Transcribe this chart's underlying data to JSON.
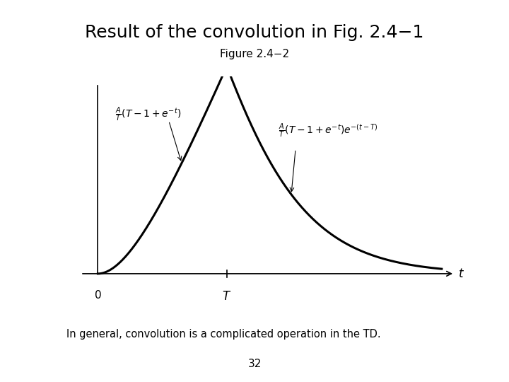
{
  "title": "Result of the convolution in Fig. 2.4−1",
  "subtitle": "Figure 2.4−2",
  "bottom_text": "In general, convolution is a complicated operation in the TD.",
  "page_number": "32",
  "background_color": "#ffffff",
  "title_fontsize": 18,
  "subtitle_fontsize": 11,
  "T_value": 3.0,
  "A_value": 1.0,
  "x_min": -0.5,
  "x_max": 8.5,
  "y_min": -0.08,
  "y_max": 0.65
}
